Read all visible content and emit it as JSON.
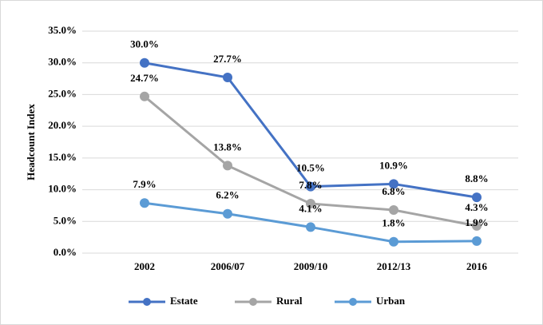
{
  "chart_data": {
    "type": "line",
    "y_label": "Headcount Index",
    "categories": [
      "2002",
      "2006/07",
      "2009/10",
      "2012/13",
      "2016"
    ],
    "series": [
      {
        "name": "Estate",
        "color": "#4472c4",
        "values": [
          30.0,
          27.7,
          10.5,
          10.9,
          8.8
        ],
        "value_labels": [
          "30.0%",
          "27.7%",
          "10.5%",
          "10.9%",
          "8.8%"
        ]
      },
      {
        "name": "Rural",
        "color": "#a5a5a5",
        "values": [
          24.7,
          13.8,
          7.8,
          6.8,
          4.3
        ],
        "value_labels": [
          "24.7%",
          "13.8%",
          "7.8%",
          "6.8%",
          "4.3%"
        ]
      },
      {
        "name": "Urban",
        "color": "#5b9bd5",
        "values": [
          7.9,
          6.2,
          4.1,
          1.8,
          1.9
        ],
        "value_labels": [
          "7.9%",
          "6.2%",
          "4.1%",
          "1.8%",
          "1.9%"
        ]
      }
    ],
    "ylim": [
      0,
      35
    ],
    "yticks": [
      {
        "value": 0,
        "label": "0.0%"
      },
      {
        "value": 5,
        "label": "5.0%"
      },
      {
        "value": 10,
        "label": "10.0%"
      },
      {
        "value": 15,
        "label": "15.0%"
      },
      {
        "value": 20,
        "label": "20.0%"
      },
      {
        "value": 25,
        "label": "25.0%"
      },
      {
        "value": 30,
        "label": "30.0%"
      },
      {
        "value": 35,
        "label": "35.0%"
      }
    ],
    "grid": true,
    "legend": "bottom"
  }
}
